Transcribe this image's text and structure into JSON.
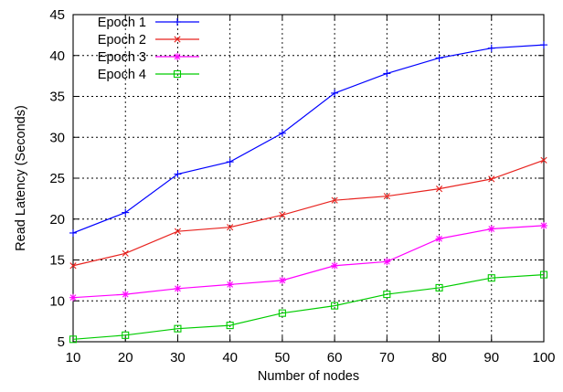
{
  "chart_data": {
    "type": "line",
    "title": "",
    "xlabel": "Number of nodes",
    "ylabel": "Read Latency (Seconds)",
    "x": [
      10,
      20,
      30,
      40,
      50,
      60,
      70,
      80,
      90,
      100
    ],
    "xlim": [
      10,
      100
    ],
    "ylim": [
      5,
      45
    ],
    "xticks": [
      10,
      20,
      30,
      40,
      50,
      60,
      70,
      80,
      90,
      100
    ],
    "yticks": [
      5,
      10,
      15,
      20,
      25,
      30,
      35,
      40,
      45
    ],
    "grid": true,
    "legend_position": "top-left",
    "series": [
      {
        "name": "Epoch 1",
        "color": "#0000ff",
        "marker": "plus",
        "values": [
          18.3,
          20.8,
          25.5,
          27.0,
          30.5,
          35.4,
          37.8,
          39.7,
          40.9,
          41.3
        ]
      },
      {
        "name": "Epoch 2",
        "color": "#e8231f",
        "marker": "cross",
        "values": [
          14.3,
          15.8,
          18.5,
          19.0,
          20.5,
          22.3,
          22.8,
          23.7,
          24.9,
          27.2
        ]
      },
      {
        "name": "Epoch 3",
        "color": "#ff00ff",
        "marker": "asterisk",
        "values": [
          10.4,
          10.8,
          11.5,
          12.0,
          12.5,
          14.3,
          14.8,
          17.6,
          18.8,
          19.2
        ]
      },
      {
        "name": "Epoch 4",
        "color": "#00cc00",
        "marker": "square",
        "values": [
          5.3,
          5.8,
          6.6,
          7.0,
          8.5,
          9.4,
          10.8,
          11.6,
          12.8,
          13.2
        ]
      }
    ]
  }
}
